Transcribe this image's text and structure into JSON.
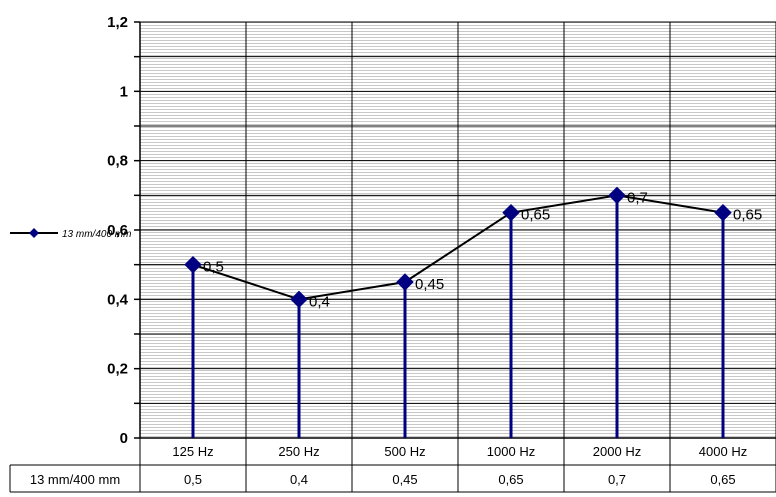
{
  "chart_data": {
    "type": "line",
    "categories": [
      "125 Hz",
      "250 Hz",
      "500 Hz",
      "1000 Hz",
      "2000 Hz",
      "4000 Hz"
    ],
    "series": [
      {
        "name": "13 mm/400 mm",
        "values": [
          0.5,
          0.4,
          0.45,
          0.65,
          0.7,
          0.65
        ]
      }
    ],
    "data_labels": [
      "0,5",
      "0,4",
      "0,45",
      "0,65",
      "0,7",
      "0,65"
    ],
    "table_values": [
      "0,5",
      "0,4",
      "0,45",
      "0,65",
      "0,7",
      "0,65"
    ],
    "y_ticks": [
      0,
      0.2,
      0.4,
      0.6,
      0.8,
      1,
      1.2
    ],
    "y_tick_labels": [
      "0",
      "0,2",
      "0,4",
      "0,6",
      "0,8",
      "1",
      "1,2"
    ],
    "ylim": [
      0,
      1.2
    ],
    "grid": true,
    "legend": "left",
    "colors": {
      "marker": "#000080",
      "line": "#000000",
      "drop": "#000080",
      "grid": "#000000"
    }
  }
}
